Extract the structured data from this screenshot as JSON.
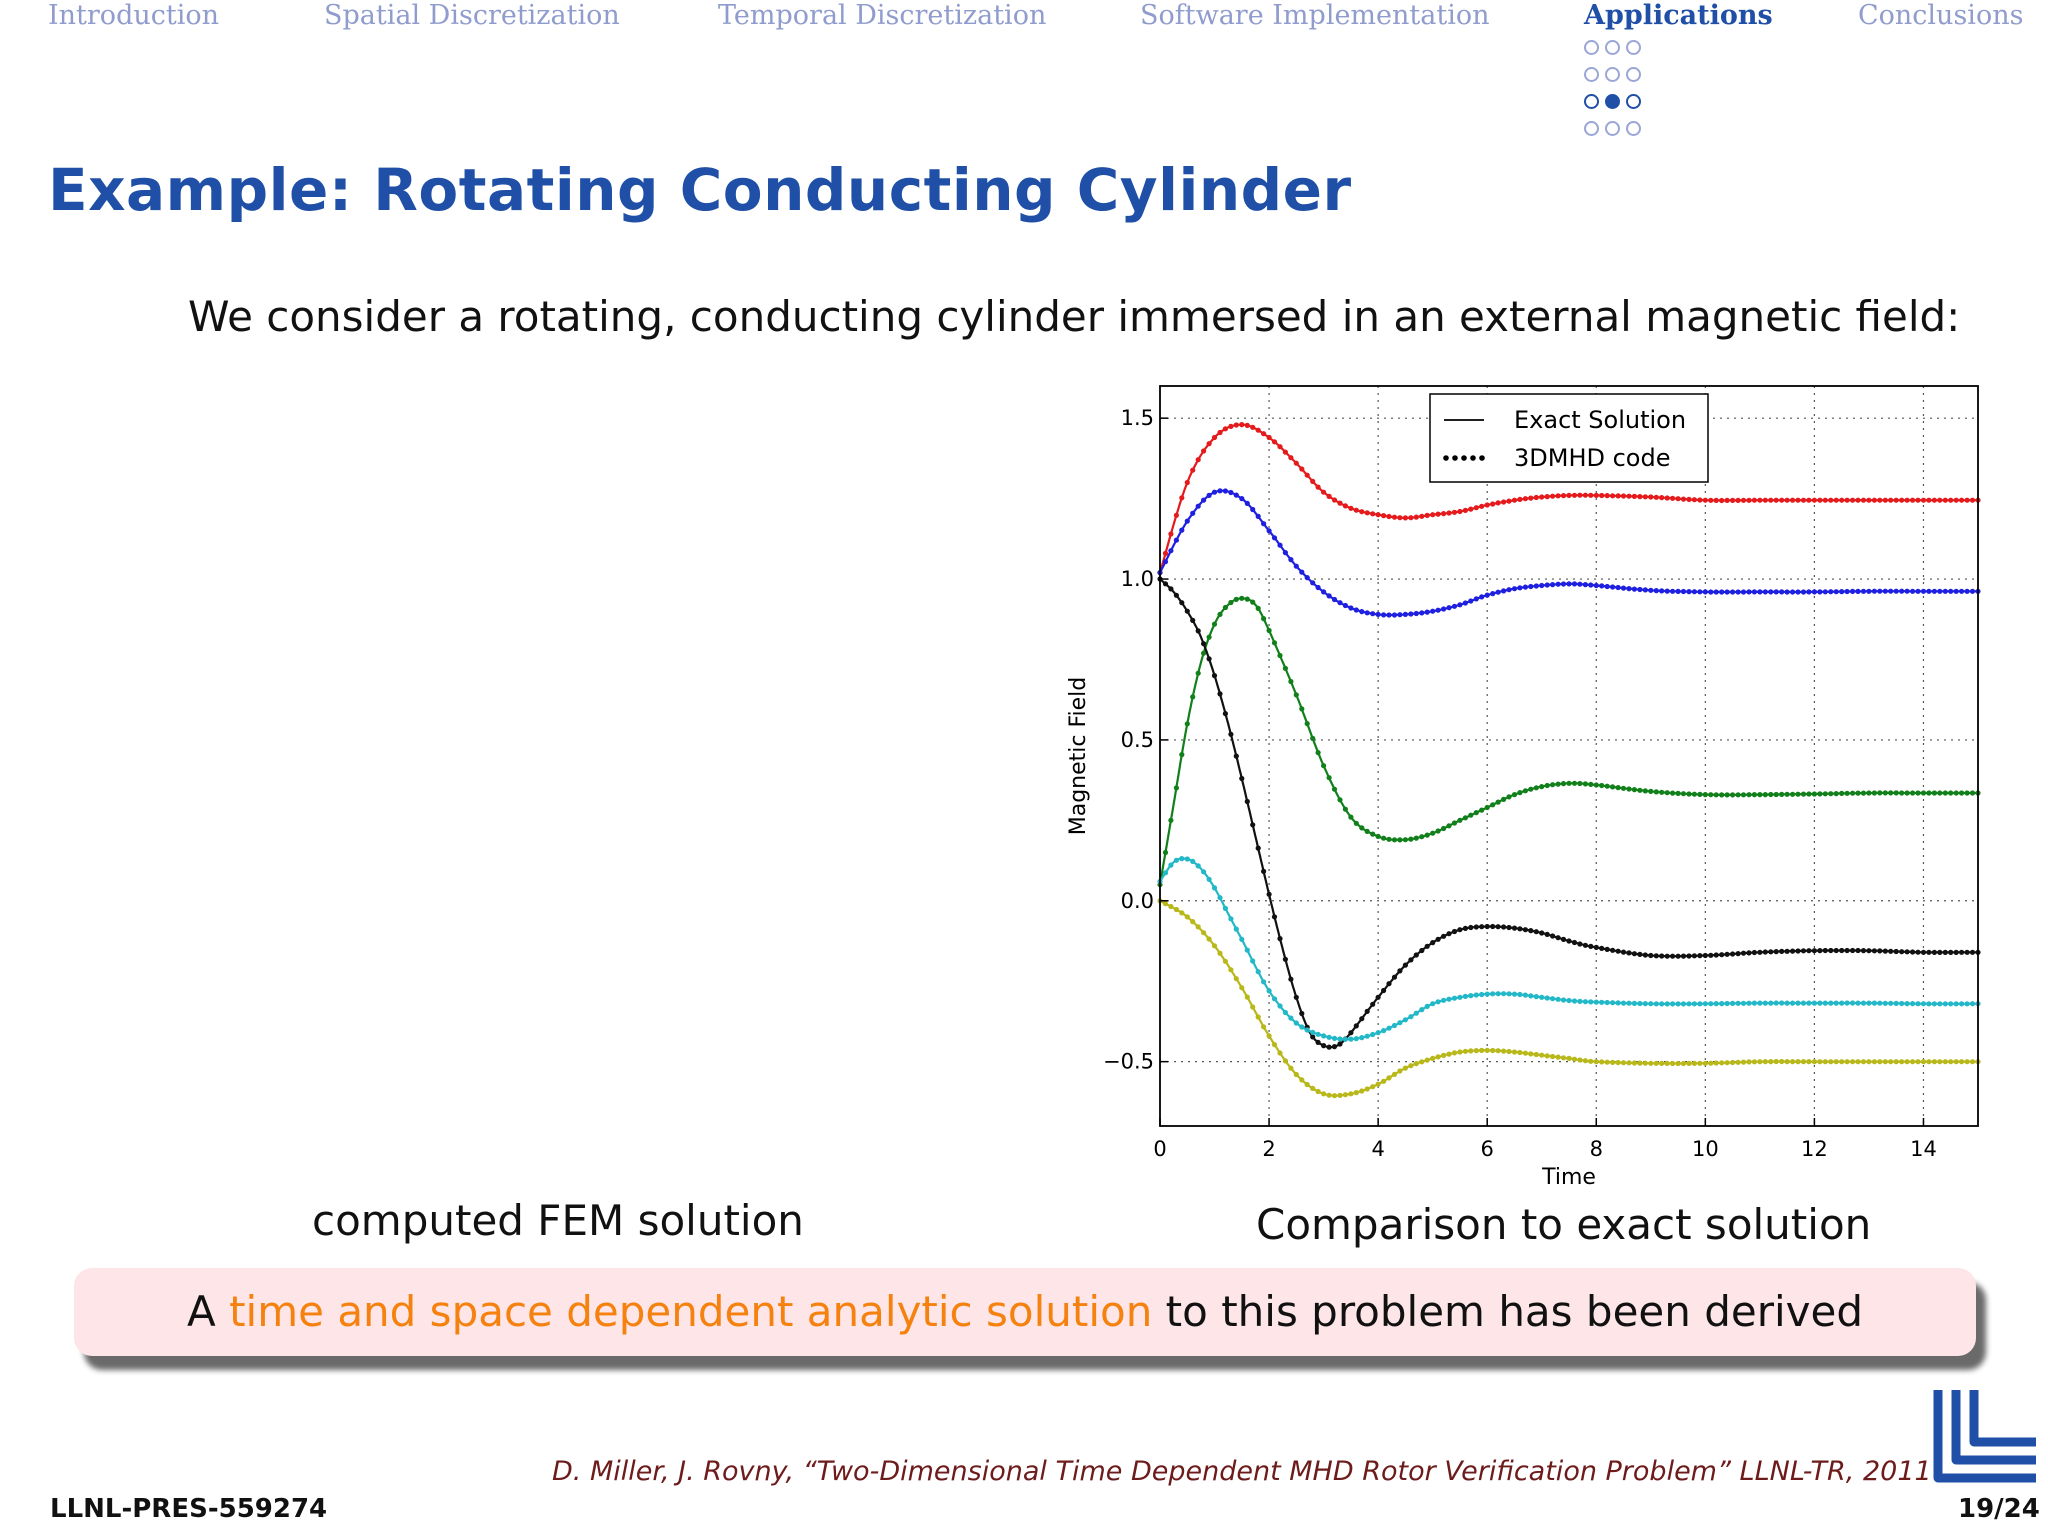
{
  "nav": {
    "items": [
      {
        "label": "Introduction",
        "active": false
      },
      {
        "label": "Spatial Discretization",
        "active": false
      },
      {
        "label": "Temporal Discretization",
        "active": false
      },
      {
        "label": "Software Implementation",
        "active": false
      },
      {
        "label": "Applications",
        "active": true
      },
      {
        "label": "Conclusions",
        "active": false
      }
    ],
    "progress_dots": {
      "rows": 4,
      "cols": 3,
      "current": [
        2,
        1
      ]
    }
  },
  "slide": {
    "title": "Example: Rotating Conducting Cylinder",
    "intro": "We consider a rotating, conducting cylinder immersed in an external magnetic field:",
    "fem_caption": "computed FEM solution",
    "comparison_caption": "Comparison to exact solution",
    "callout": {
      "before": "A ",
      "highlight": "time and space dependent analytic solution",
      "after": " to this problem has been derived"
    },
    "citation": "D. Miller, J. Rovny, “Two-Dimensional Time Dependent MHD Rotor Verification Problem” LLNL-TR, 2011",
    "report_id": "LLNL-PRES-559274",
    "page_number": "19/24"
  },
  "colors": {
    "accent": "#1f4fa6",
    "nav_inactive": "#8f9ccd",
    "highlight": "#f5820f",
    "callout_bg": "#fde5e8",
    "citation": "#6d1b1b"
  },
  "chart_data": {
    "type": "line",
    "title": "",
    "xlabel": "Time",
    "ylabel": "Magnetic Field",
    "xlim": [
      0,
      15
    ],
    "ylim": [
      -0.7,
      1.6
    ],
    "xticks": [
      0,
      2,
      4,
      6,
      8,
      10,
      12,
      14
    ],
    "yticks": [
      -0.5,
      0.0,
      0.5,
      1.0,
      1.5
    ],
    "ytick_labels": [
      "−0.5",
      "0.0",
      "0.5",
      "1.0",
      "1.5"
    ],
    "grid": true,
    "legend": {
      "position": "top-center",
      "entries": [
        {
          "label": "Exact Solution",
          "style": "solid"
        },
        {
          "label": "3DMHD code",
          "style": "dotted"
        }
      ]
    },
    "series": [
      {
        "color": "#e41a1c",
        "x": [
          0,
          0.5,
          1,
          1.5,
          2,
          2.5,
          3,
          3.5,
          4,
          4.5,
          5,
          5.5,
          6,
          6.5,
          7,
          7.5,
          8,
          9,
          10,
          11,
          12,
          13,
          14,
          15
        ],
        "y": [
          1.02,
          1.3,
          1.44,
          1.48,
          1.44,
          1.36,
          1.27,
          1.22,
          1.2,
          1.19,
          1.2,
          1.21,
          1.23,
          1.245,
          1.255,
          1.26,
          1.26,
          1.255,
          1.245,
          1.245,
          1.245,
          1.245,
          1.245,
          1.245
        ]
      },
      {
        "color": "#1f1fe0",
        "x": [
          0,
          0.5,
          1,
          1.5,
          2,
          2.5,
          3,
          3.5,
          4,
          4.5,
          5,
          5.5,
          6,
          6.5,
          7,
          7.5,
          8,
          9,
          10,
          11,
          12,
          13,
          14,
          15
        ],
        "y": [
          1.02,
          1.18,
          1.27,
          1.25,
          1.15,
          1.04,
          0.96,
          0.91,
          0.89,
          0.89,
          0.9,
          0.92,
          0.95,
          0.97,
          0.98,
          0.985,
          0.98,
          0.965,
          0.96,
          0.96,
          0.96,
          0.962,
          0.962,
          0.962
        ]
      },
      {
        "color": "#12801a",
        "x": [
          0,
          0.25,
          0.5,
          0.75,
          1,
          1.25,
          1.5,
          1.75,
          2,
          2.5,
          3,
          3.5,
          4,
          4.5,
          5,
          5.5,
          6,
          6.5,
          7,
          7.5,
          8,
          9,
          10,
          11,
          12,
          13,
          14,
          15
        ],
        "y": [
          0.05,
          0.3,
          0.55,
          0.74,
          0.86,
          0.92,
          0.94,
          0.92,
          0.84,
          0.64,
          0.42,
          0.26,
          0.2,
          0.19,
          0.21,
          0.25,
          0.29,
          0.33,
          0.355,
          0.365,
          0.36,
          0.34,
          0.33,
          0.33,
          0.332,
          0.335,
          0.335,
          0.335
        ]
      },
      {
        "color": "#111111",
        "x": [
          0,
          0.25,
          0.5,
          0.75,
          1,
          1.25,
          1.5,
          1.75,
          2,
          2.25,
          2.5,
          2.75,
          3,
          3.25,
          3.5,
          4,
          4.5,
          5,
          5.5,
          6,
          6.5,
          7,
          7.5,
          8,
          9,
          10,
          11,
          12,
          13,
          14,
          15
        ],
        "y": [
          1.0,
          0.96,
          0.9,
          0.82,
          0.7,
          0.55,
          0.38,
          0.2,
          0.02,
          -0.15,
          -0.3,
          -0.41,
          -0.45,
          -0.45,
          -0.41,
          -0.3,
          -0.2,
          -0.13,
          -0.09,
          -0.08,
          -0.085,
          -0.1,
          -0.125,
          -0.145,
          -0.17,
          -0.17,
          -0.16,
          -0.155,
          -0.155,
          -0.16,
          -0.16
        ]
      },
      {
        "color": "#22b8c8",
        "x": [
          0,
          0.25,
          0.5,
          0.75,
          1,
          1.25,
          1.5,
          2,
          2.5,
          3,
          3.5,
          4,
          4.5,
          5,
          5.5,
          6,
          6.5,
          7,
          7.5,
          8,
          9,
          10,
          11,
          12,
          13,
          14,
          15
        ],
        "y": [
          0.06,
          0.12,
          0.13,
          0.1,
          0.04,
          -0.04,
          -0.12,
          -0.28,
          -0.38,
          -0.42,
          -0.43,
          -0.41,
          -0.37,
          -0.32,
          -0.3,
          -0.29,
          -0.29,
          -0.3,
          -0.31,
          -0.315,
          -0.32,
          -0.32,
          -0.318,
          -0.318,
          -0.318,
          -0.32,
          -0.32
        ]
      },
      {
        "color": "#b8b81a",
        "x": [
          0,
          0.5,
          1,
          1.5,
          2,
          2.5,
          3,
          3.5,
          4,
          4.5,
          5,
          5.5,
          6,
          6.5,
          7,
          7.5,
          8,
          9,
          10,
          11,
          12,
          13,
          14,
          15
        ],
        "y": [
          0.0,
          -0.05,
          -0.14,
          -0.27,
          -0.42,
          -0.54,
          -0.6,
          -0.6,
          -0.57,
          -0.52,
          -0.49,
          -0.47,
          -0.465,
          -0.47,
          -0.48,
          -0.49,
          -0.5,
          -0.505,
          -0.505,
          -0.5,
          -0.5,
          -0.5,
          -0.5,
          -0.5
        ]
      }
    ]
  }
}
